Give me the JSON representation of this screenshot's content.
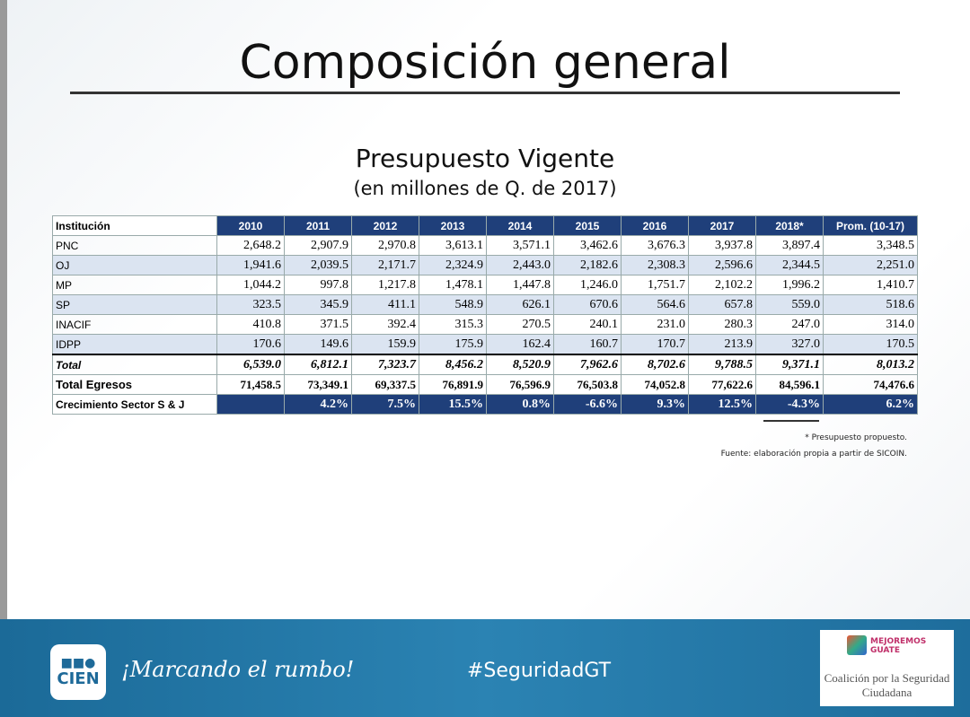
{
  "header": {
    "title": "Composición general"
  },
  "table": {
    "title": "Presupuesto Vigente",
    "subtitle": "(en millones de Q. de 2017)",
    "columns": [
      "Institución",
      "2010",
      "2011",
      "2012",
      "2013",
      "2014",
      "2015",
      "2016",
      "2017",
      "2018*",
      "Prom. (10-17)"
    ],
    "rows": [
      [
        "PNC",
        "2,648.2",
        "2,907.9",
        "2,970.8",
        "3,613.1",
        "3,571.1",
        "3,462.6",
        "3,676.3",
        "3,937.8",
        "3,897.4",
        "3,348.5"
      ],
      [
        "OJ",
        "1,941.6",
        "2,039.5",
        "2,171.7",
        "2,324.9",
        "2,443.0",
        "2,182.6",
        "2,308.3",
        "2,596.6",
        "2,344.5",
        "2,251.0"
      ],
      [
        "MP",
        "1,044.2",
        "997.8",
        "1,217.8",
        "1,478.1",
        "1,447.8",
        "1,246.0",
        "1,751.7",
        "2,102.2",
        "1,996.2",
        "1,410.7"
      ],
      [
        "SP",
        "323.5",
        "345.9",
        "411.1",
        "548.9",
        "626.1",
        "670.6",
        "564.6",
        "657.8",
        "559.0",
        "518.6"
      ],
      [
        "INACIF",
        "410.8",
        "371.5",
        "392.4",
        "315.3",
        "270.5",
        "240.1",
        "231.0",
        "280.3",
        "247.0",
        "314.0"
      ],
      [
        "IDPP",
        "170.6",
        "149.6",
        "159.9",
        "175.9",
        "162.4",
        "160.7",
        "170.7",
        "213.9",
        "327.0",
        "170.5"
      ],
      [
        "Total",
        "6,539.0",
        "6,812.1",
        "7,323.7",
        "8,456.2",
        "8,520.9",
        "7,962.6",
        "8,702.6",
        "9,788.5",
        "9,371.1",
        "8,013.2"
      ],
      [
        "Total Egresos",
        "71,458.5",
        "73,349.1",
        "69,337.5",
        "76,891.9",
        "76,596.9",
        "76,503.8",
        "74,052.8",
        "77,622.6",
        "84,596.1",
        "74,476.6"
      ],
      [
        "Crecimiento Sector S & J",
        null,
        "4.2%",
        "7.5%",
        "15.5%",
        "0.8%",
        "-6.6%",
        "9.3%",
        "12.5%",
        "-4.3%",
        "6.2%"
      ]
    ],
    "notes": [
      "* Presupuesto propuesto.",
      "Fuente: elaboración propia a partir de SICOIN."
    ]
  },
  "footer": {
    "logo": "CIEN",
    "slogan": "¡Marcando el rumbo!",
    "hashtag": "#SeguridadGT",
    "partner_logo": "MEJOREMOS GUATE",
    "partner": "Coalición por la Seguridad Ciudadana"
  }
}
